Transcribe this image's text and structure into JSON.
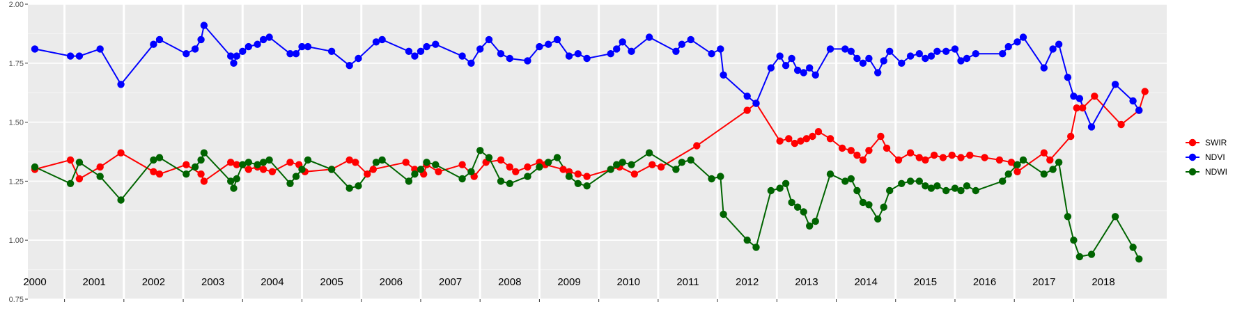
{
  "chart_data": {
    "type": "line",
    "title": "",
    "xlabel": "",
    "ylabel": "",
    "xlim": [
      2000.0,
      2018.95
    ],
    "ylim": [
      0.75,
      2.0
    ],
    "y_ticks": [
      "0.75",
      "1.00",
      "1.25",
      "1.50",
      "1.75",
      "2.00"
    ],
    "y_tick_values": [
      0.75,
      1.0,
      1.25,
      1.5,
      1.75,
      2.0
    ],
    "year_labels": [
      "2000",
      "2001",
      "2002",
      "2003",
      "2004",
      "2005",
      "2006",
      "2007",
      "2008",
      "2009",
      "2010",
      "2011",
      "2012",
      "2013",
      "2014",
      "2015",
      "2016",
      "2017",
      "2018"
    ],
    "year_boundaries": [
      2000.5,
      2001.5,
      2002.5,
      2003.5,
      2004.5,
      2005.5,
      2006.5,
      2007.5,
      2008.5,
      2009.5,
      2010.5,
      2011.5,
      2012.5,
      2013.5,
      2014.5,
      2015.5,
      2016.5,
      2017.5
    ],
    "grid": true,
    "legend_position": "right",
    "series": [
      {
        "name": "SWIR",
        "color": "#ff0000",
        "points": [
          [
            2000.0,
            1.3
          ],
          [
            2000.6,
            1.34
          ],
          [
            2000.75,
            1.26
          ],
          [
            2001.1,
            1.31
          ],
          [
            2001.45,
            1.37
          ],
          [
            2002.0,
            1.29
          ],
          [
            2002.1,
            1.28
          ],
          [
            2002.55,
            1.32
          ],
          [
            2002.8,
            1.28
          ],
          [
            2002.85,
            1.25
          ],
          [
            2003.3,
            1.33
          ],
          [
            2003.4,
            1.32
          ],
          [
            2003.6,
            1.3
          ],
          [
            2003.75,
            1.31
          ],
          [
            2003.85,
            1.3
          ],
          [
            2004.0,
            1.29
          ],
          [
            2004.3,
            1.33
          ],
          [
            2004.45,
            1.32
          ],
          [
            2004.55,
            1.29
          ],
          [
            2005.0,
            1.3
          ],
          [
            2005.3,
            1.34
          ],
          [
            2005.4,
            1.33
          ],
          [
            2005.6,
            1.28
          ],
          [
            2005.7,
            1.3
          ],
          [
            2006.25,
            1.33
          ],
          [
            2006.4,
            1.3
          ],
          [
            2006.55,
            1.28
          ],
          [
            2006.6,
            1.32
          ],
          [
            2006.8,
            1.29
          ],
          [
            2007.2,
            1.32
          ],
          [
            2007.4,
            1.27
          ],
          [
            2007.6,
            1.33
          ],
          [
            2007.85,
            1.34
          ],
          [
            2008.0,
            1.31
          ],
          [
            2008.1,
            1.29
          ],
          [
            2008.3,
            1.31
          ],
          [
            2008.5,
            1.33
          ],
          [
            2008.6,
            1.32
          ],
          [
            2008.9,
            1.3
          ],
          [
            2009.0,
            1.29
          ],
          [
            2009.15,
            1.28
          ],
          [
            2009.3,
            1.27
          ],
          [
            2009.85,
            1.31
          ],
          [
            2010.1,
            1.28
          ],
          [
            2010.4,
            1.32
          ],
          [
            2010.55,
            1.31
          ],
          [
            2011.15,
            1.4
          ],
          [
            2012.0,
            1.55
          ],
          [
            2012.15,
            1.58
          ],
          [
            2012.55,
            1.42
          ],
          [
            2012.7,
            1.43
          ],
          [
            2012.8,
            1.41
          ],
          [
            2012.9,
            1.42
          ],
          [
            2013.0,
            1.43
          ],
          [
            2013.1,
            1.44
          ],
          [
            2013.2,
            1.46
          ],
          [
            2013.4,
            1.43
          ],
          [
            2013.6,
            1.39
          ],
          [
            2013.75,
            1.38
          ],
          [
            2013.85,
            1.36
          ],
          [
            2013.95,
            1.34
          ],
          [
            2014.05,
            1.38
          ],
          [
            2014.25,
            1.44
          ],
          [
            2014.35,
            1.39
          ],
          [
            2014.55,
            1.34
          ],
          [
            2014.75,
            1.37
          ],
          [
            2014.9,
            1.35
          ],
          [
            2015.0,
            1.34
          ],
          [
            2015.15,
            1.36
          ],
          [
            2015.3,
            1.35
          ],
          [
            2015.45,
            1.36
          ],
          [
            2015.6,
            1.35
          ],
          [
            2015.75,
            1.36
          ],
          [
            2016.0,
            1.35
          ],
          [
            2016.25,
            1.34
          ],
          [
            2016.45,
            1.33
          ],
          [
            2016.55,
            1.29
          ],
          [
            2017.0,
            1.37
          ],
          [
            2017.1,
            1.34
          ],
          [
            2017.45,
            1.44
          ],
          [
            2017.55,
            1.56
          ],
          [
            2017.65,
            1.56
          ],
          [
            2017.85,
            1.61
          ],
          [
            2018.3,
            1.49
          ],
          [
            2018.6,
            1.55
          ],
          [
            2018.7,
            1.63
          ]
        ]
      },
      {
        "name": "NDVI",
        "color": "#0000ff",
        "points": [
          [
            2000.0,
            1.81
          ],
          [
            2000.6,
            1.78
          ],
          [
            2000.75,
            1.78
          ],
          [
            2001.1,
            1.81
          ],
          [
            2001.45,
            1.66
          ],
          [
            2002.0,
            1.83
          ],
          [
            2002.1,
            1.85
          ],
          [
            2002.55,
            1.79
          ],
          [
            2002.7,
            1.81
          ],
          [
            2002.8,
            1.85
          ],
          [
            2002.85,
            1.91
          ],
          [
            2003.3,
            1.78
          ],
          [
            2003.35,
            1.75
          ],
          [
            2003.4,
            1.78
          ],
          [
            2003.5,
            1.8
          ],
          [
            2003.6,
            1.82
          ],
          [
            2003.75,
            1.83
          ],
          [
            2003.85,
            1.85
          ],
          [
            2003.95,
            1.86
          ],
          [
            2004.3,
            1.79
          ],
          [
            2004.4,
            1.79
          ],
          [
            2004.5,
            1.82
          ],
          [
            2004.6,
            1.82
          ],
          [
            2005.0,
            1.8
          ],
          [
            2005.3,
            1.74
          ],
          [
            2005.45,
            1.77
          ],
          [
            2005.75,
            1.84
          ],
          [
            2005.85,
            1.85
          ],
          [
            2006.3,
            1.8
          ],
          [
            2006.4,
            1.78
          ],
          [
            2006.5,
            1.8
          ],
          [
            2006.6,
            1.82
          ],
          [
            2006.75,
            1.83
          ],
          [
            2007.2,
            1.78
          ],
          [
            2007.35,
            1.75
          ],
          [
            2007.5,
            1.81
          ],
          [
            2007.65,
            1.85
          ],
          [
            2007.85,
            1.79
          ],
          [
            2008.0,
            1.77
          ],
          [
            2008.3,
            1.76
          ],
          [
            2008.5,
            1.82
          ],
          [
            2008.65,
            1.83
          ],
          [
            2008.8,
            1.85
          ],
          [
            2009.0,
            1.78
          ],
          [
            2009.15,
            1.79
          ],
          [
            2009.3,
            1.77
          ],
          [
            2009.7,
            1.79
          ],
          [
            2009.8,
            1.81
          ],
          [
            2009.9,
            1.84
          ],
          [
            2010.05,
            1.8
          ],
          [
            2010.35,
            1.86
          ],
          [
            2010.8,
            1.8
          ],
          [
            2010.9,
            1.83
          ],
          [
            2011.05,
            1.85
          ],
          [
            2011.4,
            1.79
          ],
          [
            2011.55,
            1.81
          ],
          [
            2011.6,
            1.7
          ],
          [
            2012.0,
            1.61
          ],
          [
            2012.15,
            1.58
          ],
          [
            2012.4,
            1.73
          ],
          [
            2012.55,
            1.78
          ],
          [
            2012.65,
            1.74
          ],
          [
            2012.75,
            1.77
          ],
          [
            2012.85,
            1.72
          ],
          [
            2012.95,
            1.71
          ],
          [
            2013.05,
            1.73
          ],
          [
            2013.15,
            1.7
          ],
          [
            2013.4,
            1.81
          ],
          [
            2013.65,
            1.81
          ],
          [
            2013.75,
            1.8
          ],
          [
            2013.85,
            1.77
          ],
          [
            2013.95,
            1.75
          ],
          [
            2014.05,
            1.77
          ],
          [
            2014.2,
            1.71
          ],
          [
            2014.3,
            1.76
          ],
          [
            2014.4,
            1.8
          ],
          [
            2014.6,
            1.75
          ],
          [
            2014.75,
            1.78
          ],
          [
            2014.9,
            1.79
          ],
          [
            2015.0,
            1.77
          ],
          [
            2015.1,
            1.78
          ],
          [
            2015.2,
            1.8
          ],
          [
            2015.35,
            1.8
          ],
          [
            2015.5,
            1.81
          ],
          [
            2015.6,
            1.76
          ],
          [
            2015.7,
            1.77
          ],
          [
            2015.85,
            1.79
          ],
          [
            2016.3,
            1.79
          ],
          [
            2016.4,
            1.82
          ],
          [
            2016.55,
            1.84
          ],
          [
            2016.65,
            1.86
          ],
          [
            2017.0,
            1.73
          ],
          [
            2017.15,
            1.81
          ],
          [
            2017.25,
            1.83
          ],
          [
            2017.4,
            1.69
          ],
          [
            2017.5,
            1.61
          ],
          [
            2017.6,
            1.6
          ],
          [
            2017.8,
            1.48
          ],
          [
            2018.2,
            1.66
          ],
          [
            2018.5,
            1.59
          ],
          [
            2018.6,
            1.55
          ]
        ]
      },
      {
        "name": "NDWI",
        "color": "#006400",
        "points": [
          [
            2000.0,
            1.31
          ],
          [
            2000.6,
            1.24
          ],
          [
            2000.75,
            1.33
          ],
          [
            2001.1,
            1.27
          ],
          [
            2001.45,
            1.17
          ],
          [
            2002.0,
            1.34
          ],
          [
            2002.1,
            1.35
          ],
          [
            2002.55,
            1.28
          ],
          [
            2002.7,
            1.31
          ],
          [
            2002.8,
            1.34
          ],
          [
            2002.85,
            1.37
          ],
          [
            2003.3,
            1.25
          ],
          [
            2003.35,
            1.22
          ],
          [
            2003.4,
            1.26
          ],
          [
            2003.5,
            1.32
          ],
          [
            2003.6,
            1.33
          ],
          [
            2003.75,
            1.32
          ],
          [
            2003.85,
            1.33
          ],
          [
            2003.95,
            1.34
          ],
          [
            2004.3,
            1.24
          ],
          [
            2004.4,
            1.27
          ],
          [
            2004.5,
            1.3
          ],
          [
            2004.6,
            1.34
          ],
          [
            2005.0,
            1.3
          ],
          [
            2005.3,
            1.22
          ],
          [
            2005.45,
            1.23
          ],
          [
            2005.75,
            1.33
          ],
          [
            2005.85,
            1.34
          ],
          [
            2006.3,
            1.25
          ],
          [
            2006.4,
            1.28
          ],
          [
            2006.5,
            1.3
          ],
          [
            2006.6,
            1.33
          ],
          [
            2006.75,
            1.32
          ],
          [
            2007.2,
            1.26
          ],
          [
            2007.35,
            1.29
          ],
          [
            2007.5,
            1.38
          ],
          [
            2007.65,
            1.35
          ],
          [
            2007.85,
            1.25
          ],
          [
            2008.0,
            1.24
          ],
          [
            2008.3,
            1.27
          ],
          [
            2008.5,
            1.31
          ],
          [
            2008.65,
            1.33
          ],
          [
            2008.8,
            1.35
          ],
          [
            2009.0,
            1.27
          ],
          [
            2009.15,
            1.24
          ],
          [
            2009.3,
            1.23
          ],
          [
            2009.7,
            1.3
          ],
          [
            2009.8,
            1.32
          ],
          [
            2009.9,
            1.33
          ],
          [
            2010.05,
            1.32
          ],
          [
            2010.35,
            1.37
          ],
          [
            2010.8,
            1.3
          ],
          [
            2010.9,
            1.33
          ],
          [
            2011.05,
            1.34
          ],
          [
            2011.4,
            1.26
          ],
          [
            2011.55,
            1.27
          ],
          [
            2011.6,
            1.11
          ],
          [
            2012.0,
            1.0
          ],
          [
            2012.15,
            0.97
          ],
          [
            2012.4,
            1.21
          ],
          [
            2012.55,
            1.22
          ],
          [
            2012.65,
            1.24
          ],
          [
            2012.75,
            1.16
          ],
          [
            2012.85,
            1.14
          ],
          [
            2012.95,
            1.12
          ],
          [
            2013.05,
            1.06
          ],
          [
            2013.15,
            1.08
          ],
          [
            2013.4,
            1.28
          ],
          [
            2013.65,
            1.25
          ],
          [
            2013.75,
            1.26
          ],
          [
            2013.85,
            1.21
          ],
          [
            2013.95,
            1.16
          ],
          [
            2014.05,
            1.15
          ],
          [
            2014.2,
            1.09
          ],
          [
            2014.3,
            1.14
          ],
          [
            2014.4,
            1.21
          ],
          [
            2014.6,
            1.24
          ],
          [
            2014.75,
            1.25
          ],
          [
            2014.9,
            1.25
          ],
          [
            2015.0,
            1.23
          ],
          [
            2015.1,
            1.22
          ],
          [
            2015.2,
            1.23
          ],
          [
            2015.35,
            1.21
          ],
          [
            2015.5,
            1.22
          ],
          [
            2015.6,
            1.21
          ],
          [
            2015.7,
            1.23
          ],
          [
            2015.85,
            1.21
          ],
          [
            2016.3,
            1.25
          ],
          [
            2016.4,
            1.28
          ],
          [
            2016.55,
            1.32
          ],
          [
            2016.65,
            1.34
          ],
          [
            2017.0,
            1.28
          ],
          [
            2017.15,
            1.3
          ],
          [
            2017.25,
            1.33
          ],
          [
            2017.4,
            1.1
          ],
          [
            2017.5,
            1.0
          ],
          [
            2017.6,
            0.93
          ],
          [
            2017.8,
            0.94
          ],
          [
            2018.2,
            1.1
          ],
          [
            2018.5,
            0.97
          ],
          [
            2018.6,
            0.92
          ]
        ]
      }
    ]
  }
}
